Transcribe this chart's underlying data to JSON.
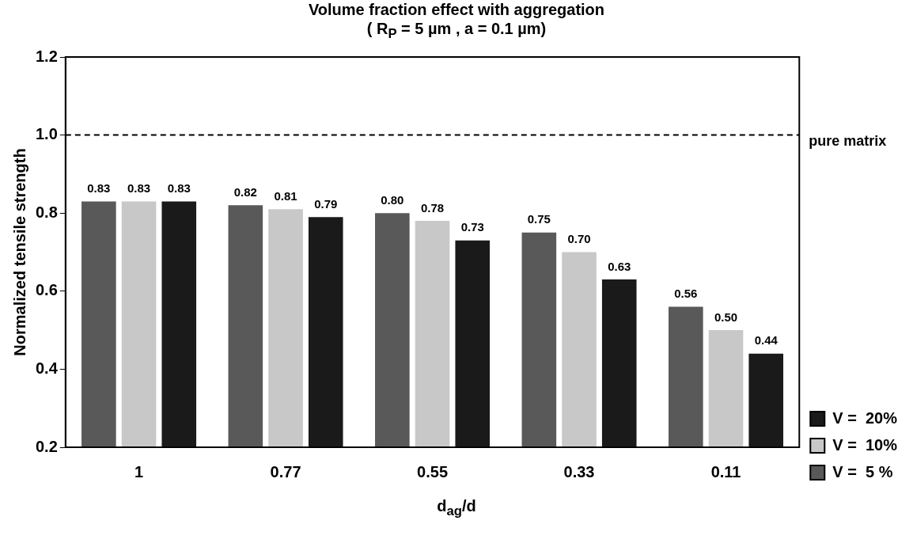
{
  "chart_data": {
    "type": "bar",
    "title": "Volume fraction effect with aggregation",
    "subtitle": "( R$_{P}$ = 5 µm , a = 0.1 µm)",
    "xlabel": "d$_{ag}$/d",
    "ylabel": "Normalized tensile strength",
    "categories": [
      "1",
      "0.77",
      "0.55",
      "0.33",
      "0.11"
    ],
    "series": [
      {
        "name": "V =  5 %",
        "color": "#595959",
        "values": [
          0.83,
          0.82,
          0.8,
          0.75,
          0.56
        ],
        "value_labels": [
          "0.83",
          "0.82",
          "0.80",
          "0.75",
          "0.56"
        ]
      },
      {
        "name": "V =  10%",
        "color": "#c8c8c8",
        "values": [
          0.83,
          0.81,
          0.78,
          0.7,
          0.5
        ],
        "value_labels": [
          "0.83",
          "0.81",
          "0.78",
          "0.70",
          "0.50"
        ]
      },
      {
        "name": "V =  20%",
        "color": "#1a1a1a",
        "values": [
          0.83,
          0.79,
          0.73,
          0.63,
          0.44
        ],
        "value_labels": [
          "0.83",
          "0.79",
          "0.73",
          "0.63",
          "0.44"
        ]
      }
    ],
    "ylim": [
      0.2,
      1.2
    ],
    "yticks": [
      0.2,
      0.4,
      0.6,
      0.8,
      {
        "value": 1,
        "label": "1.0"
      },
      {
        "value": 1.2,
        "label": "1.2"
      }
    ],
    "ref_lines": [
      {
        "axis": "y",
        "value": 1,
        "label": "pure matrix",
        "line_style": "dashed",
        "color": "#000000"
      }
    ],
    "grid": false,
    "legend": "right"
  }
}
